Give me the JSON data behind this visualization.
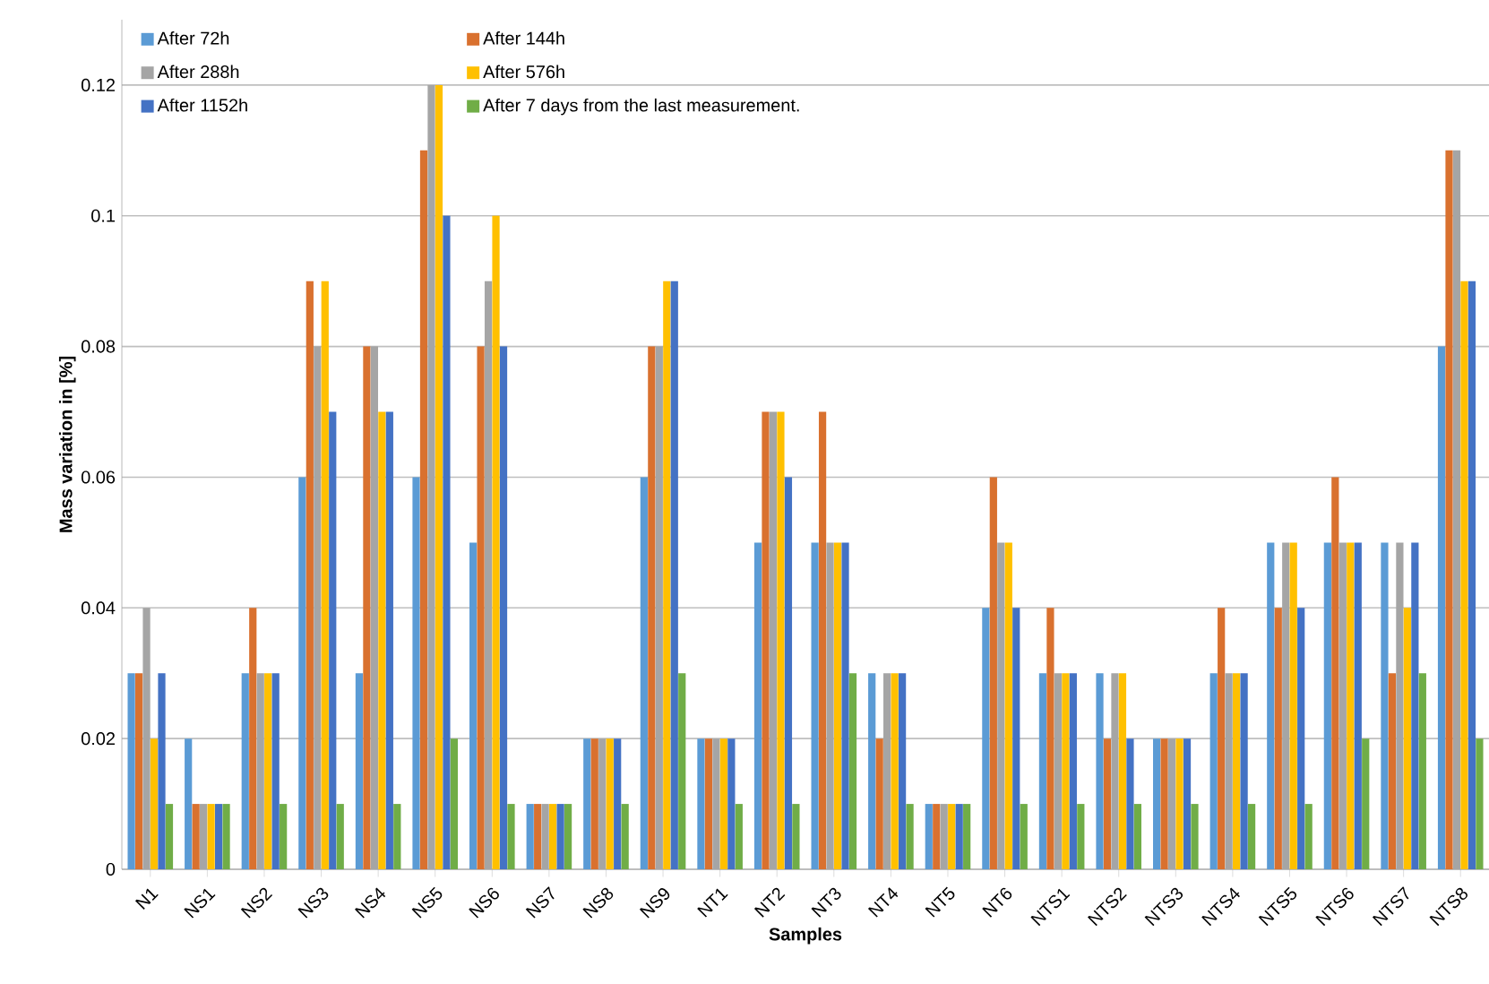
{
  "chart_data": {
    "type": "bar",
    "xlabel": "Samples",
    "ylabel": "Mass variation in [%]",
    "categories": [
      "N1",
      "NS1",
      "NS2",
      "NS3",
      "NS4",
      "NS5",
      "NS6",
      "NS7",
      "NS8",
      "NS9",
      "NT1",
      "NT2",
      "NT3",
      "NT4",
      "NT5",
      "NT6",
      "NTS1",
      "NTS2",
      "NTS3",
      "NTS4",
      "NTS5",
      "NTS6",
      "NTS7",
      "NTS8"
    ],
    "series": [
      {
        "name": "After 72h",
        "color": "#5b9bd5",
        "values": [
          0.03,
          0.02,
          0.03,
          0.06,
          0.03,
          0.06,
          0.05,
          0.01,
          0.02,
          0.06,
          0.02,
          0.05,
          0.05,
          0.03,
          0.01,
          0.04,
          0.03,
          0.03,
          0.02,
          0.03,
          0.05,
          0.05,
          0.05,
          0.08
        ]
      },
      {
        "name": "After 144h",
        "color": "#d9712f",
        "values": [
          0.03,
          0.01,
          0.04,
          0.09,
          0.08,
          0.11,
          0.08,
          0.01,
          0.02,
          0.08,
          0.02,
          0.07,
          0.07,
          0.02,
          0.01,
          0.06,
          0.04,
          0.02,
          0.02,
          0.04,
          0.04,
          0.06,
          0.03,
          0.11
        ]
      },
      {
        "name": "After 288h",
        "color": "#a5a5a5",
        "values": [
          0.04,
          0.01,
          0.03,
          0.08,
          0.08,
          0.12,
          0.09,
          0.01,
          0.02,
          0.08,
          0.02,
          0.07,
          0.05,
          0.03,
          0.01,
          0.05,
          0.03,
          0.03,
          0.02,
          0.03,
          0.05,
          0.05,
          0.05,
          0.11
        ]
      },
      {
        "name": "After 576h",
        "color": "#ffc000",
        "values": [
          0.02,
          0.01,
          0.03,
          0.09,
          0.07,
          0.12,
          0.1,
          0.01,
          0.02,
          0.09,
          0.02,
          0.07,
          0.05,
          0.03,
          0.01,
          0.05,
          0.03,
          0.03,
          0.02,
          0.03,
          0.05,
          0.05,
          0.04,
          0.09
        ]
      },
      {
        "name": "After 1152h",
        "color": "#4472c4",
        "values": [
          0.03,
          0.01,
          0.03,
          0.07,
          0.07,
          0.1,
          0.08,
          0.01,
          0.02,
          0.09,
          0.02,
          0.06,
          0.05,
          0.03,
          0.01,
          0.04,
          0.03,
          0.02,
          0.02,
          0.03,
          0.04,
          0.05,
          0.05,
          0.09
        ]
      },
      {
        "name": "After 7 days from the last measurement.",
        "color": "#70ad47",
        "values": [
          0.01,
          0.01,
          0.01,
          0.01,
          0.01,
          0.02,
          0.01,
          0.01,
          0.01,
          0.03,
          0.01,
          0.01,
          0.03,
          0.01,
          0.01,
          0.01,
          0.01,
          0.01,
          0.01,
          0.01,
          0.01,
          0.02,
          0.03,
          0.02
        ]
      }
    ],
    "ylim": [
      0,
      0.13
    ],
    "yticks": [
      0,
      0.02,
      0.04,
      0.06,
      0.08,
      0.1,
      0.12
    ],
    "grid": "y",
    "legend": "top left"
  }
}
